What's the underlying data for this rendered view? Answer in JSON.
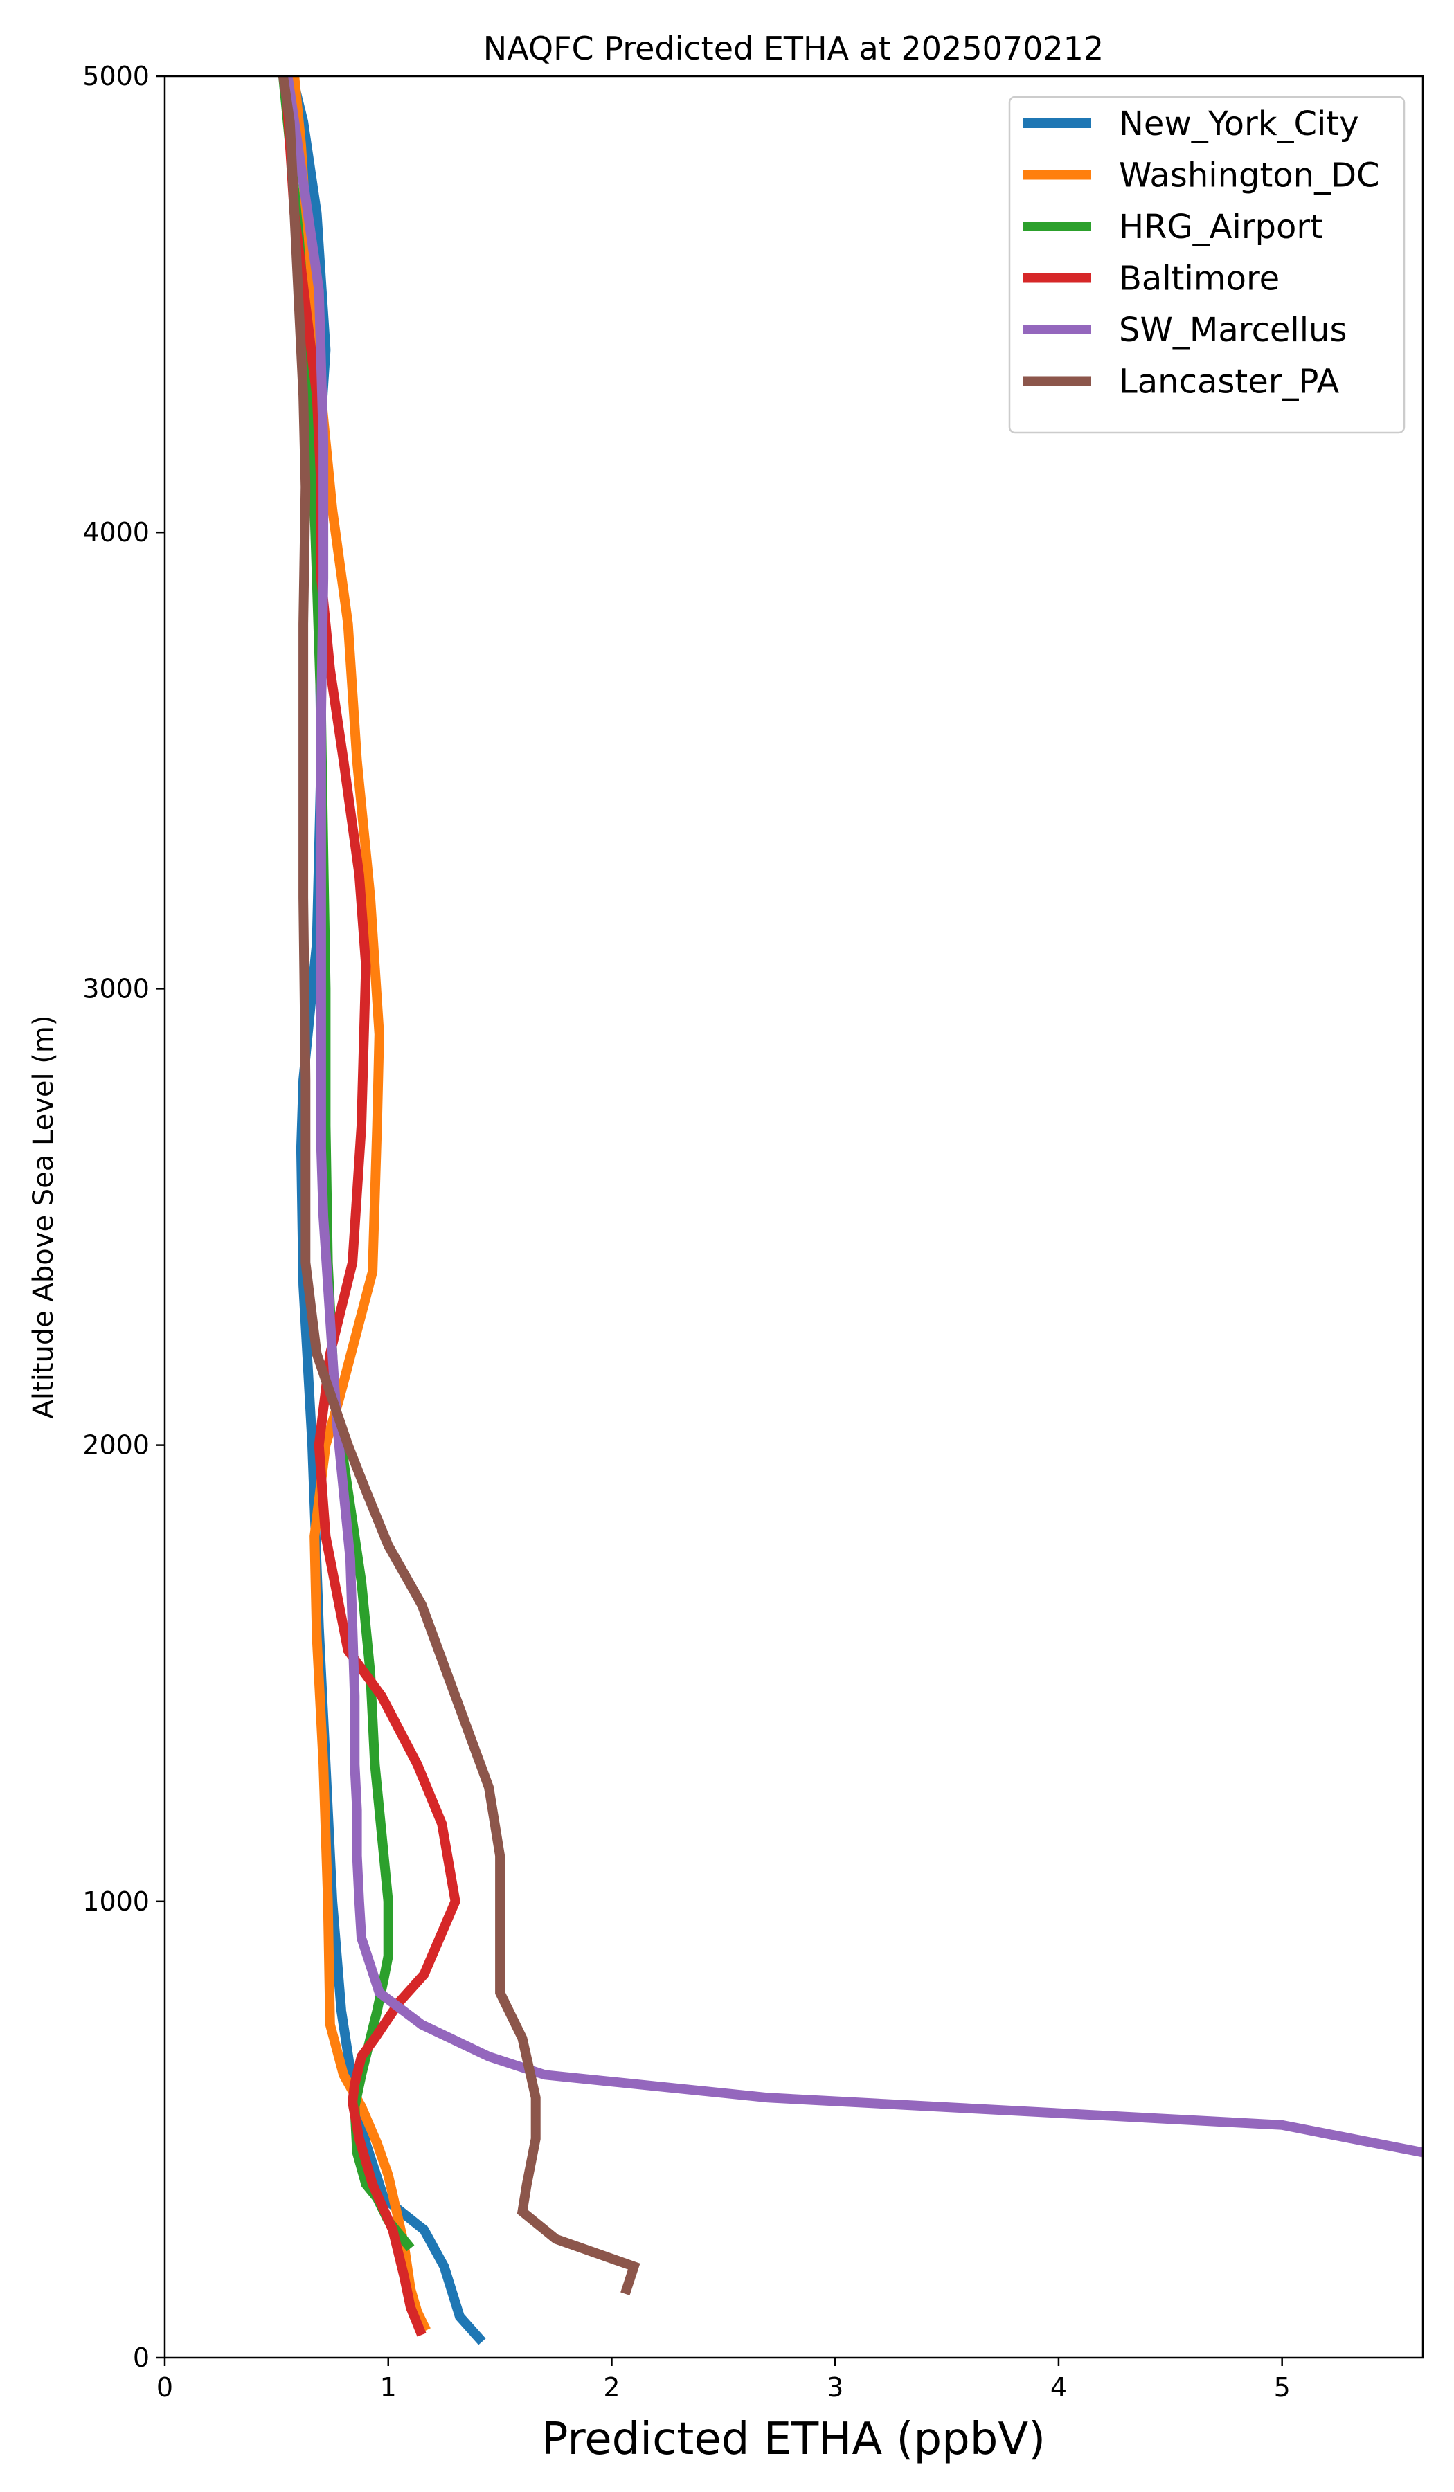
{
  "chart_data": {
    "type": "line",
    "title": "NAQFC Predicted ETHA at 2025070212",
    "xlabel": "Predicted ETHA (ppbV)",
    "ylabel": "Altitude Above Sea Level (m)",
    "xlim": [
      0,
      5.63
    ],
    "ylim": [
      0,
      5000
    ],
    "xticks": [
      0,
      1,
      2,
      3,
      4,
      5
    ],
    "yticks": [
      0,
      1000,
      2000,
      3000,
      4000,
      5000
    ],
    "grid": false,
    "legend_position": "upper right",
    "series": [
      {
        "name": "New_York_City",
        "color": "#1f77b4",
        "x": [
          1.42,
          1.32,
          1.25,
          1.16,
          0.98,
          0.9,
          0.84,
          0.79,
          0.75,
          0.72,
          0.69,
          0.66,
          0.62,
          0.61,
          0.62,
          0.68,
          0.7,
          0.69,
          0.7,
          0.72,
          0.7,
          0.68,
          0.65,
          0.62,
          0.57
        ],
        "y": [
          35,
          90,
          200,
          280,
          350,
          470,
          600,
          760,
          1000,
          1300,
          1600,
          2000,
          2350,
          2650,
          2800,
          3100,
          3500,
          3900,
          4250,
          4400,
          4550,
          4700,
          4800,
          4900,
          5000
        ]
      },
      {
        "name": "Washington_DC",
        "color": "#ff7f0e",
        "x": [
          1.17,
          1.13,
          1.1,
          1.07,
          1.0,
          0.95,
          0.88,
          0.8,
          0.74,
          0.73,
          0.71,
          0.68,
          0.67,
          0.72,
          0.78,
          0.86,
          0.93,
          0.95,
          0.96,
          0.92,
          0.86,
          0.82,
          0.75,
          0.7,
          0.66,
          0.63,
          0.61,
          0.58
        ],
        "y": [
          60,
          100,
          150,
          250,
          400,
          470,
          550,
          620,
          730,
          1000,
          1300,
          1580,
          1800,
          2000,
          2100,
          2250,
          2380,
          2700,
          2900,
          3200,
          3500,
          3800,
          4050,
          4300,
          4500,
          4700,
          4850,
          5000
        ]
      },
      {
        "name": "HRG_Airport",
        "color": "#2ca02c",
        "x": [
          1.1,
          1.0,
          0.95,
          0.9,
          0.86,
          0.85,
          0.88,
          0.92,
          0.95,
          0.98,
          1.0,
          1.0,
          0.97,
          0.94,
          0.92,
          0.88,
          0.82,
          0.76,
          0.73,
          0.72,
          0.72,
          0.71,
          0.7,
          0.68,
          0.66,
          0.63,
          0.6,
          0.56,
          0.53
        ],
        "y": [
          240,
          300,
          350,
          380,
          450,
          550,
          620,
          700,
          760,
          830,
          880,
          1000,
          1150,
          1300,
          1500,
          1700,
          1900,
          2100,
          2400,
          2700,
          3000,
          3300,
          3600,
          3900,
          4200,
          4450,
          4650,
          4850,
          5000
        ]
      },
      {
        "name": "Baltimore",
        "color": "#d62728",
        "x": [
          1.15,
          1.1,
          1.07,
          1.02,
          0.93,
          0.87,
          0.84,
          0.85,
          0.88,
          0.94,
          1.05,
          1.16,
          1.3,
          1.24,
          1.13,
          0.97,
          0.82,
          0.78,
          0.72,
          0.69,
          0.74,
          0.84,
          0.88,
          0.9,
          0.87,
          0.8,
          0.74,
          0.7,
          0.7,
          0.68,
          0.63,
          0.58,
          0.54
        ],
        "y": [
          50,
          110,
          180,
          280,
          380,
          480,
          560,
          600,
          660,
          700,
          780,
          840,
          1000,
          1170,
          1300,
          1450,
          1550,
          1650,
          1800,
          2000,
          2200,
          2400,
          2700,
          3050,
          3250,
          3500,
          3700,
          3900,
          4100,
          4300,
          4500,
          4700,
          5000
        ]
      },
      {
        "name": "SW_Marcellus",
        "color": "#9467bd",
        "x": [
          5.63,
          5.0,
          2.7,
          1.7,
          1.45,
          1.15,
          0.96,
          0.88,
          0.87,
          0.86,
          0.86,
          0.85,
          0.85,
          0.84,
          0.83,
          0.8,
          0.77,
          0.75,
          0.73,
          0.71,
          0.7,
          0.7,
          0.7,
          0.7,
          0.7,
          0.71,
          0.71,
          0.69,
          0.67,
          0.64,
          0.61,
          0.58,
          0.55
        ],
        "y": [
          450,
          510,
          570,
          620,
          660,
          730,
          800,
          920,
          1000,
          1100,
          1200,
          1300,
          1450,
          1600,
          1750,
          1900,
          2050,
          2200,
          2350,
          2500,
          2650,
          2800,
          3000,
          3300,
          3600,
          3900,
          4200,
          4530,
          4600,
          4700,
          4800,
          4900,
          5000
        ]
      },
      {
        "name": "Lancaster_PA",
        "color": "#8c564b",
        "x": [
          2.06,
          2.1,
          1.75,
          1.6,
          1.62,
          1.66,
          1.66,
          1.6,
          1.5,
          1.5,
          1.45,
          1.3,
          1.15,
          1.0,
          0.9,
          0.82,
          0.75,
          0.68,
          0.63,
          0.63,
          0.62,
          0.62,
          0.62,
          0.63,
          0.62,
          0.6,
          0.58,
          0.56,
          0.53
        ],
        "y": [
          140,
          200,
          260,
          320,
          380,
          480,
          570,
          700,
          800,
          1100,
          1250,
          1450,
          1650,
          1780,
          1900,
          2000,
          2100,
          2200,
          2400,
          2800,
          3200,
          3500,
          3800,
          4100,
          4300,
          4500,
          4700,
          4900,
          5000
        ]
      }
    ]
  }
}
